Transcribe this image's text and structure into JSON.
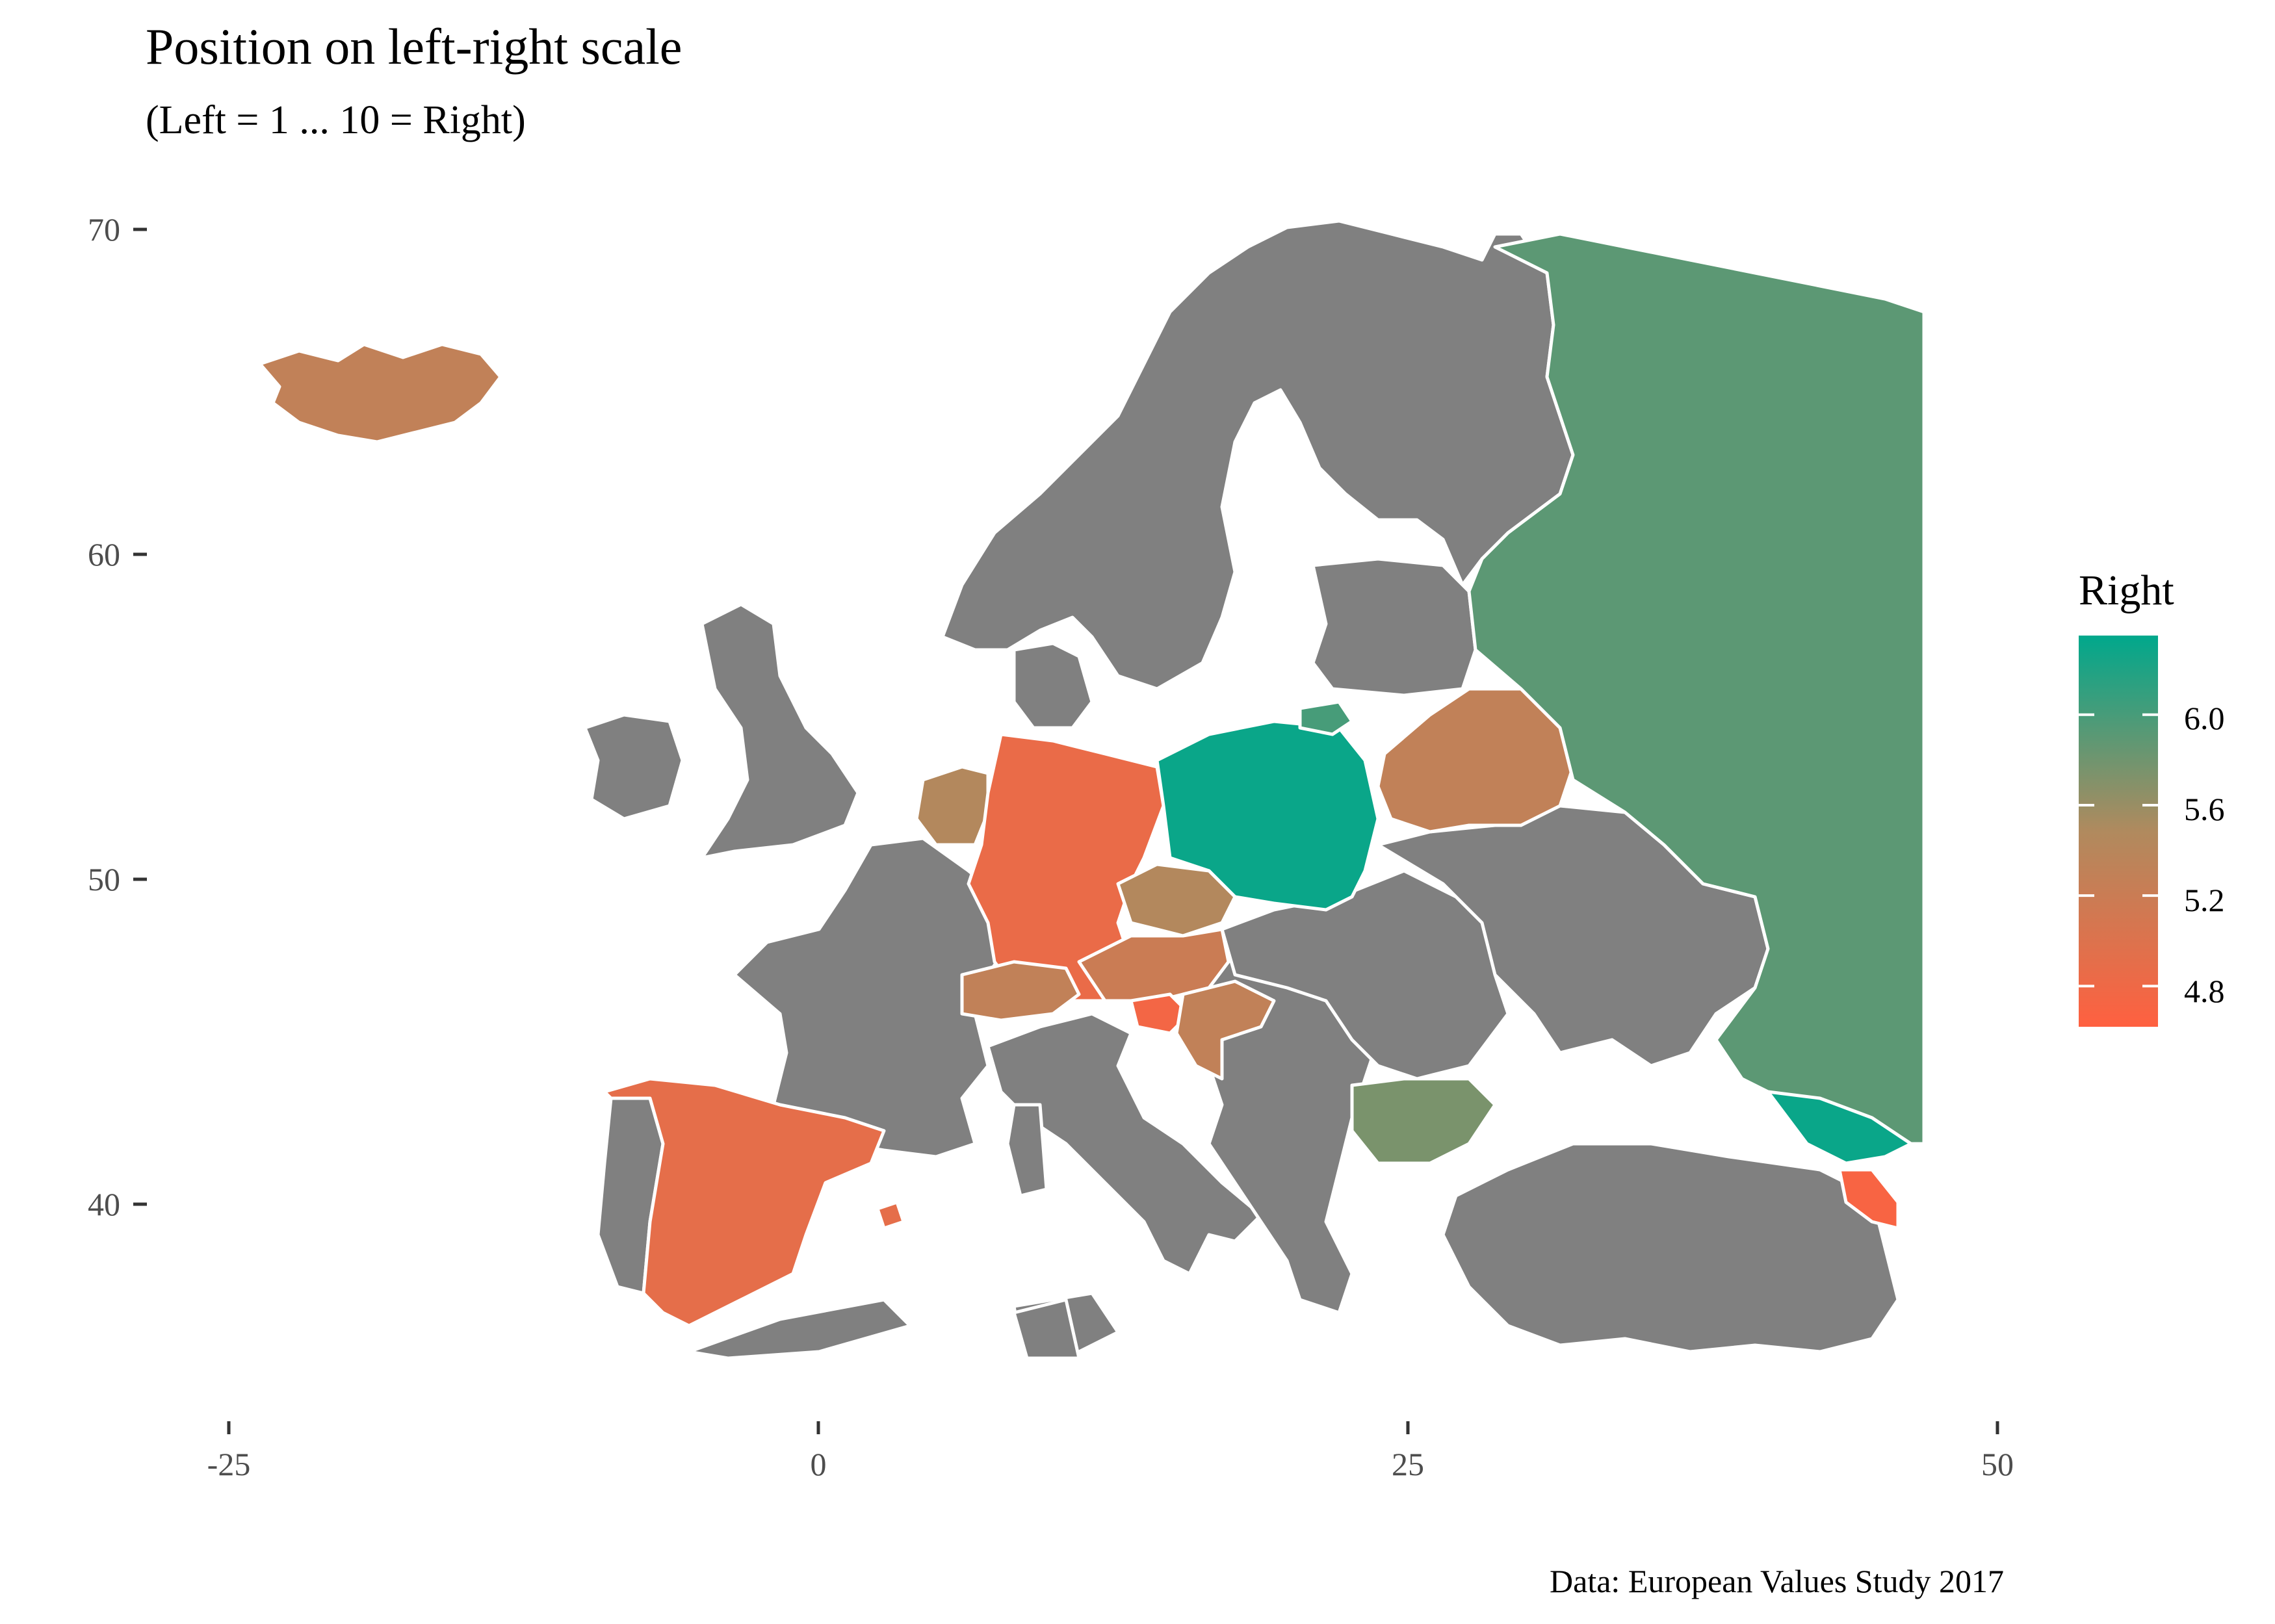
{
  "chart_data": {
    "type": "map",
    "title": "Position on left-right scale",
    "subtitle": "(Left = 1 ... 10 = Right)",
    "caption": "Data: European Values Study 2017",
    "x_ticks": [
      "-25",
      "0",
      "25",
      "50"
    ],
    "y_ticks": [
      "70",
      "60",
      "50",
      "40"
    ],
    "legend": {
      "title": "Right",
      "labels": [
        "6.0",
        "5.6",
        "5.2",
        "4.8"
      ],
      "color_low": "#ff6040",
      "color_mid": "#b08a5e",
      "color_high": "#00a88c",
      "range": [
        4.62,
        6.35
      ]
    },
    "missing_color": "#808080",
    "countries": [
      {
        "name": "Iceland",
        "value": 5.3
      },
      {
        "name": "Netherlands",
        "value": 5.45
      },
      {
        "name": "Germany",
        "value": 4.85
      },
      {
        "name": "Poland",
        "value": 6.3
      },
      {
        "name": "Lithuania",
        "value": 6.0
      },
      {
        "name": "Belarus",
        "value": 5.3
      },
      {
        "name": "Russia",
        "value": 5.9
      },
      {
        "name": "Czechia",
        "value": 5.45
      },
      {
        "name": "Austria",
        "value": 5.2
      },
      {
        "name": "Switzerland",
        "value": 5.3
      },
      {
        "name": "Slovenia",
        "value": 4.75
      },
      {
        "name": "Croatia",
        "value": 5.3
      },
      {
        "name": "Bulgaria",
        "value": 5.75
      },
      {
        "name": "Spain",
        "value": 4.9
      },
      {
        "name": "Georgia",
        "value": 6.3
      },
      {
        "name": "Armenia",
        "value": 4.7
      }
    ]
  }
}
